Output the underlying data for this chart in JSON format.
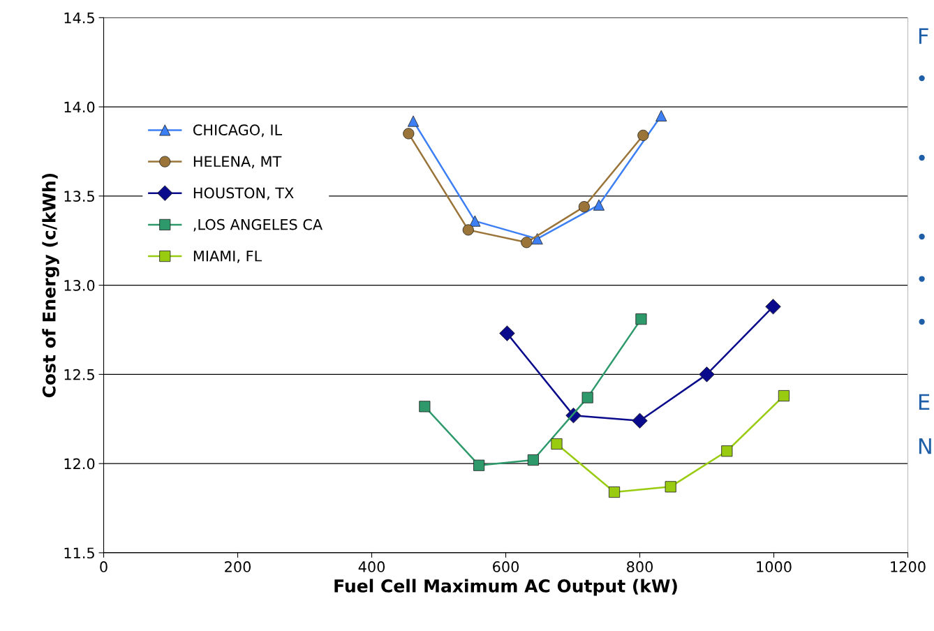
{
  "chart_data": {
    "type": "line",
    "xlabel": "Fuel Cell Maximum AC Output (kW)",
    "ylabel": "Cost of Energy (c/kWh)",
    "xlim": [
      0,
      1200
    ],
    "xticks": [
      0,
      200,
      400,
      600,
      800,
      1000,
      1200
    ],
    "ylim": [
      11.5,
      14.5
    ],
    "yticks": [
      {
        "value": 11.5,
        "label": "11.5"
      },
      {
        "value": 12.0,
        "label": "12.0"
      },
      {
        "value": 12.5,
        "label": "12.5"
      },
      {
        "value": 13.0,
        "label": "13.0"
      },
      {
        "value": 13.5,
        "label": "13.5"
      },
      {
        "value": 14.0,
        "label": "14.0"
      },
      {
        "value": 14.5,
        "label": "14.5"
      }
    ],
    "grid": "y",
    "legend": "left",
    "line_style": "solid",
    "series": [
      {
        "name": "CHICAGO, IL",
        "color": "#3d7ff5",
        "marker": "triangle",
        "x": [
          462,
          554,
          647,
          739,
          832
        ],
        "values": [
          13.92,
          13.36,
          13.26,
          13.45,
          13.95
        ]
      },
      {
        "name": "HELENA, MT",
        "color": "#9a7438",
        "marker": "circle",
        "x": [
          455,
          544,
          631,
          717,
          805
        ],
        "values": [
          13.85,
          13.31,
          13.24,
          13.44,
          13.84
        ]
      },
      {
        "name": "HOUSTON, TX",
        "color": "#0a0a8c",
        "marker": "diamond",
        "x": [
          602,
          701,
          800,
          900,
          999
        ],
        "values": [
          12.73,
          12.27,
          12.24,
          12.5,
          12.88
        ]
      },
      {
        "name": ",LOS ANGELES CA",
        "color": "#2e9a6c",
        "marker": "square",
        "x": [
          479,
          560,
          641,
          722,
          802
        ],
        "values": [
          12.32,
          11.99,
          12.02,
          12.37,
          12.81
        ]
      },
      {
        "name": "MIAMI, FL",
        "color": "#99cc11",
        "marker": "square",
        "x": [
          676,
          762,
          846,
          930,
          1015
        ],
        "values": [
          12.11,
          11.84,
          11.87,
          12.07,
          12.38
        ]
      }
    ],
    "annotations": [
      "F",
      "E",
      "N"
    ]
  }
}
